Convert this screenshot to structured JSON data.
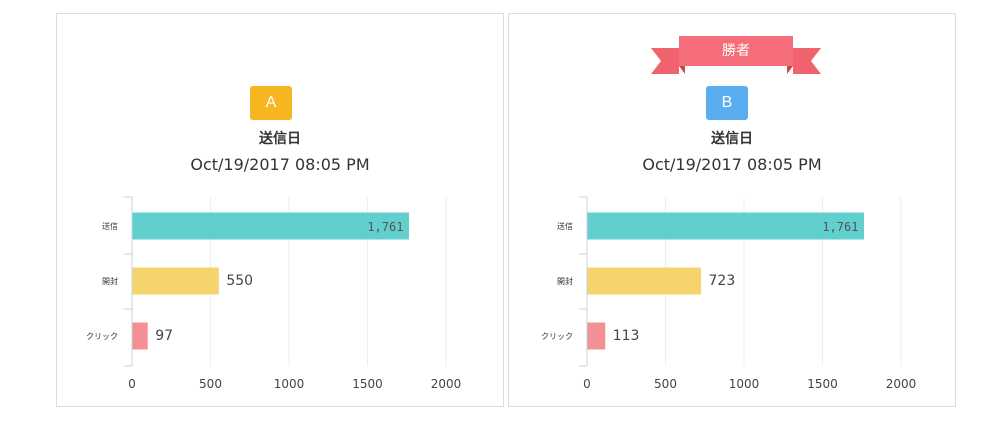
{
  "colors": {
    "panel_border": "#dcdcdc",
    "ribbon": "#f0636e",
    "ribbon_dark": "#e2515c",
    "badge_a": "#f8b522",
    "badge_b": "#5aaef0",
    "grid": "#eeeeee",
    "axis": "#c5d3e2"
  },
  "panels": [
    {
      "variant": "A",
      "winner": false,
      "send_label": "送信日",
      "send_date": "Oct/19/2017 08:05 PM"
    },
    {
      "variant": "B",
      "winner": true,
      "ribbon_text": "勝者",
      "send_label": "送信日",
      "send_date": "Oct/19/2017 08:05 PM"
    }
  ],
  "chart_data": [
    {
      "type": "bar",
      "orientation": "horizontal",
      "categories": [
        "送信",
        "開封",
        "クリック"
      ],
      "values": [
        1761,
        550,
        97
      ],
      "value_labels": [
        "1,761",
        "550",
        "97"
      ],
      "bar_colors": [
        "#62cfcf",
        "#f5d46e",
        "#f48f95"
      ],
      "xlim": [
        0,
        2000
      ],
      "xticks": [
        "0",
        "500",
        "1000",
        "1500",
        "2000"
      ],
      "grid": true
    },
    {
      "type": "bar",
      "orientation": "horizontal",
      "categories": [
        "送信",
        "開封",
        "クリック"
      ],
      "values": [
        1761,
        723,
        113
      ],
      "value_labels": [
        "1,761",
        "723",
        "113"
      ],
      "bar_colors": [
        "#62cfcf",
        "#f5d46e",
        "#f48f95"
      ],
      "xlim": [
        0,
        2000
      ],
      "xticks": [
        "0",
        "500",
        "1000",
        "1500",
        "2000"
      ],
      "grid": true
    }
  ]
}
